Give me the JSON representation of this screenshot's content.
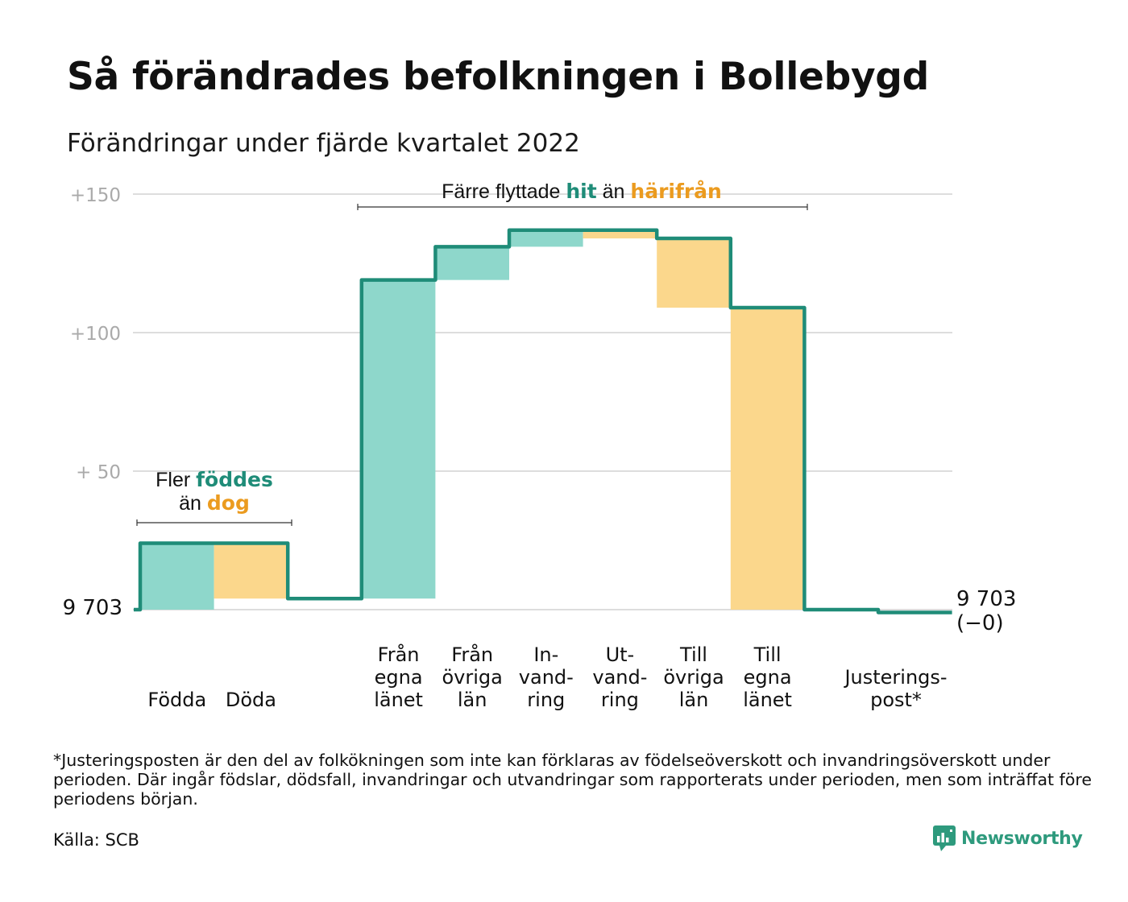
{
  "title": "Så förändrades befolkningen i Bollebygd",
  "subtitle": "Förändringar under fjärde kvartalet 2022",
  "colors": {
    "line": "#1f8c78",
    "increase": "#8ed7cb",
    "decrease": "#fbd78c",
    "teal_text": "#1f8c78",
    "orange_text": "#eb9b1f",
    "grid": "#dddddd",
    "tick_text": "#aaaaaa"
  },
  "chart_data": {
    "type": "waterfall",
    "start_label": "9 703",
    "end_label": [
      "9 703",
      "(−0)"
    ],
    "y_ticks": [
      {
        "value": 150,
        "label": "+150"
      },
      {
        "value": 100,
        "label": "+100"
      },
      {
        "value": 50,
        "label": "+ 50"
      }
    ],
    "ylim": [
      0,
      150
    ],
    "steps": [
      {
        "label": [
          "Födda"
        ],
        "change": 24,
        "kind": "increase"
      },
      {
        "label": [
          "Döda"
        ],
        "change": -20,
        "kind": "decrease"
      },
      {
        "label": [],
        "change": 0,
        "kind": "gap"
      },
      {
        "label": [
          "Från",
          "egna",
          "länet"
        ],
        "change": 115,
        "kind": "increase"
      },
      {
        "label": [
          "Från",
          "övriga",
          "län"
        ],
        "change": 12,
        "kind": "increase"
      },
      {
        "label": [
          "In-",
          "vand-",
          "ring"
        ],
        "change": 6,
        "kind": "increase"
      },
      {
        "label": [
          "Ut-",
          "vand-",
          "ring"
        ],
        "change": -3,
        "kind": "decrease"
      },
      {
        "label": [
          "Till",
          "övriga",
          "län"
        ],
        "change": -25,
        "kind": "decrease"
      },
      {
        "label": [
          "Till",
          "egna",
          "länet"
        ],
        "change": -109,
        "kind": "decrease"
      },
      {
        "label": [],
        "change": 0,
        "kind": "flat"
      },
      {
        "label": [
          "Justerings-",
          "post*"
        ],
        "change": -1,
        "kind": "adjustment"
      }
    ],
    "annotations": [
      {
        "group": "births",
        "parts": [
          {
            "text": "Fler ",
            "style": "plain"
          },
          {
            "text": "föddes",
            "style": "teal"
          },
          {
            "text": "än ",
            "style": "plain"
          },
          {
            "text": "dog",
            "style": "orange"
          }
        ]
      },
      {
        "group": "migration",
        "parts": [
          {
            "text": "Färre flyttade ",
            "style": "plain"
          },
          {
            "text": "hit",
            "style": "teal"
          },
          {
            "text": " än ",
            "style": "plain"
          },
          {
            "text": "härifrån",
            "style": "orange"
          }
        ]
      }
    ]
  },
  "footnote": "*Justeringsposten är den del av folkökningen som inte kan förklaras av födelseöverskott och invandringsöverskott under perioden. Där ingår födslar, dödsfall, invandringar och utvandringar som rapporterats under perioden, men som inträffat före periodens början.",
  "source": "Källa: SCB",
  "brand": "Newsworthy"
}
